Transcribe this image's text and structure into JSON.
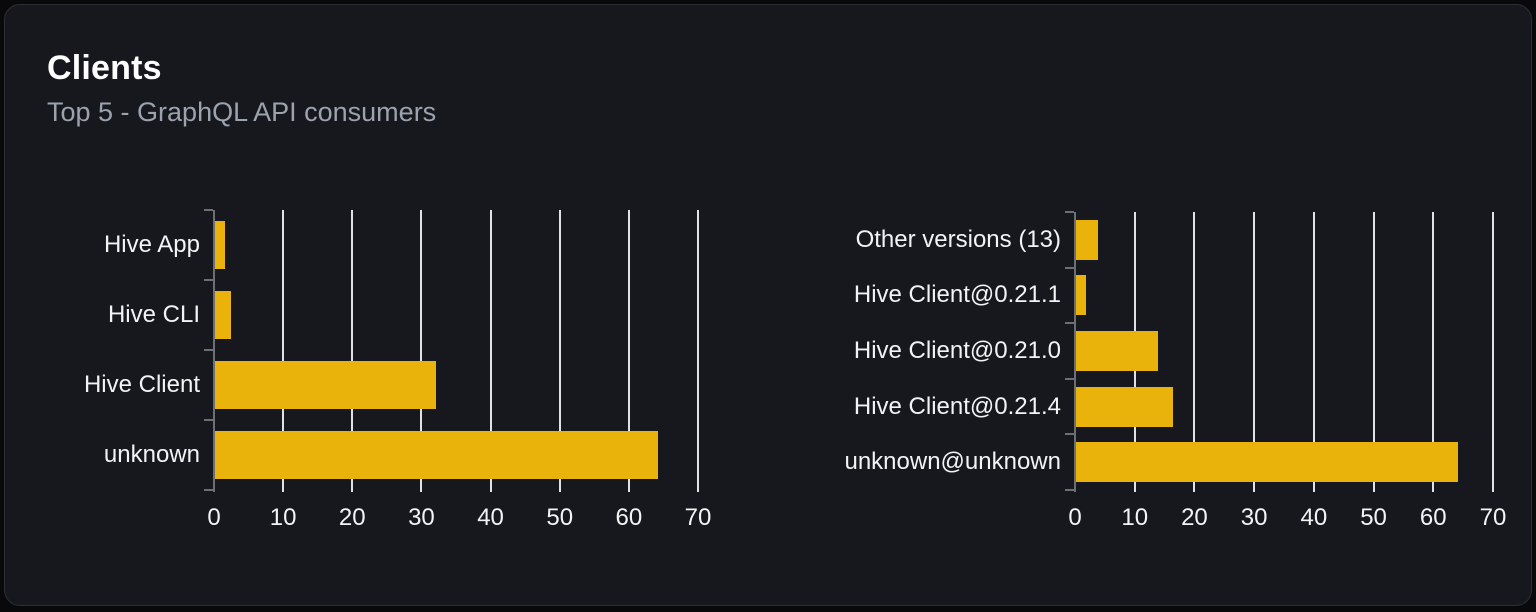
{
  "card": {
    "title": "Clients",
    "subtitle": "Top 5 - GraphQL API consumers"
  },
  "colors": {
    "page_background": "#09090b",
    "card_background": "#16181d",
    "bar": "#eab30b",
    "gridline": "#dfe2e8",
    "axis": "#6b6f76",
    "label_text": "#f2f3f5",
    "subtitle_text": "#9ca3af",
    "title_text": "#ffffff"
  },
  "chart_data": [
    {
      "type": "bar",
      "orientation": "horizontal",
      "title": "",
      "xlabel": "",
      "ylabel": "",
      "categories": [
        "Hive App",
        "Hive CLI",
        "Hive Client",
        "unknown"
      ],
      "values": [
        1.4,
        2.3,
        32,
        64
      ],
      "xlim": [
        0,
        70
      ],
      "xticks": [
        0,
        10,
        20,
        30,
        40,
        50,
        60,
        70
      ],
      "grid": true,
      "legend": false
    },
    {
      "type": "bar",
      "orientation": "horizontal",
      "title": "",
      "xlabel": "",
      "ylabel": "",
      "categories": [
        "Other versions (13)",
        "Hive Client@0.21.1",
        "Hive Client@0.21.0",
        "Hive Client@0.21.4",
        "unknown@unknown"
      ],
      "values": [
        3.7,
        1.7,
        13.7,
        16.2,
        64
      ],
      "xlim": [
        0,
        70
      ],
      "xticks": [
        0,
        10,
        20,
        30,
        40,
        50,
        60,
        70
      ],
      "grid": true,
      "legend": false
    }
  ]
}
